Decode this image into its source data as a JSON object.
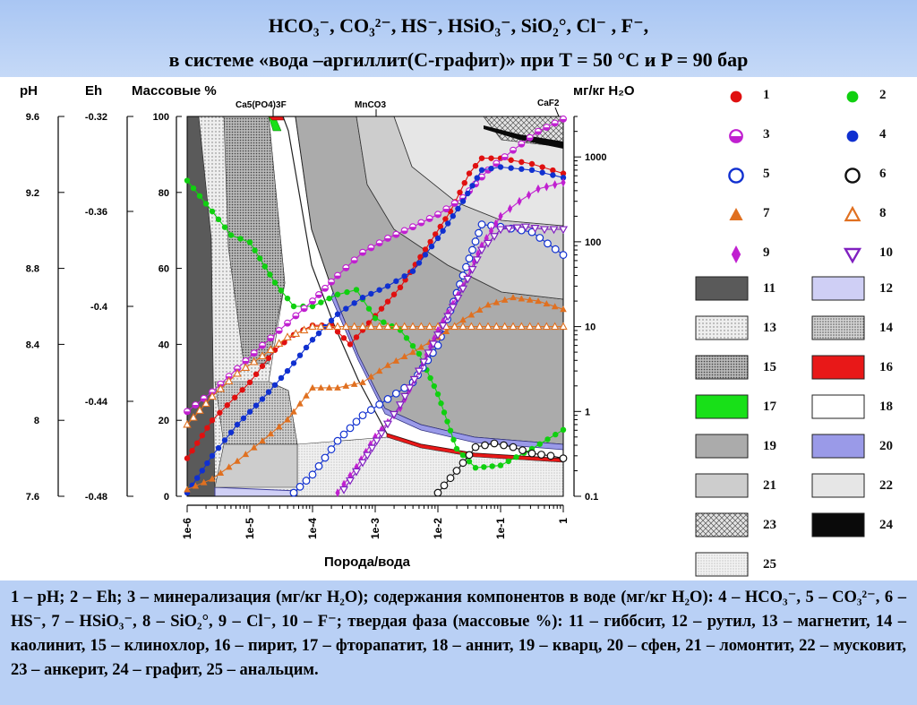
{
  "header": {
    "title_line1": "HCO₃⁻, CO₃²⁻, HS⁻, HSiO₃⁻, SiO₂°, Cl⁻ , F⁻,",
    "title_line2": "в системе «вода –аргиллит(C-графит)» при T = 50 °C  и  P = 90 бар"
  },
  "chart_data": {
    "type": "line",
    "title": "",
    "xlabel": "Порода/вода",
    "x_scale": "log",
    "x_ticks": [
      "1e-6",
      "1e-5",
      "1e-4",
      "1e-3",
      "1e-2",
      "1e-1",
      "1"
    ],
    "x_range": [
      1e-06,
      1
    ],
    "axes": {
      "ph": {
        "label": "pH",
        "ticks": [
          "9.6",
          "9.2",
          "8.8",
          "8.4",
          "8",
          "7.6"
        ],
        "range": [
          7.6,
          9.6
        ]
      },
      "eh": {
        "label": "Eh",
        "ticks": [
          "-0.32",
          "-0.36",
          "-0.4",
          "-0.44",
          "-0.48"
        ],
        "range": [
          -0.48,
          -0.32
        ]
      },
      "mass": {
        "label": "Массовые %",
        "ticks": [
          "100",
          "80",
          "60",
          "40",
          "20",
          "0"
        ],
        "range": [
          0,
          100
        ]
      },
      "conc": {
        "label": "мг/кг H₂O",
        "ticks": [
          "1000",
          "100",
          "10",
          "1",
          "0.1"
        ],
        "scale": "log",
        "range": [
          0.1,
          3000
        ]
      }
    },
    "mineral_annotations": [
      "Ca5(PO4)3F",
      "MnCO3",
      "CaF2"
    ],
    "series": [
      {
        "id": 1,
        "name": "pH",
        "axis": "ph",
        "color": "#e01010",
        "marker": "filled-circle",
        "x": [
          -6,
          -5.6,
          -5,
          -4.6,
          -4.3,
          -4,
          -3.7,
          -3.4,
          -3,
          -2.6,
          -2.2,
          -1.8,
          -1.5,
          -1.3,
          -1,
          -0.5,
          0
        ],
        "y": [
          7.8,
          8.0,
          8.2,
          8.37,
          8.45,
          8.5,
          8.5,
          8.4,
          8.55,
          8.7,
          8.9,
          9.1,
          9.3,
          9.38,
          9.38,
          9.35,
          9.3
        ]
      },
      {
        "id": 2,
        "name": "Eh",
        "axis": "eh",
        "color": "#10d010",
        "marker": "filled-circle",
        "x": [
          -6,
          -5.6,
          -5.3,
          -5,
          -4.6,
          -4.3,
          -4,
          -3.6,
          -3.3,
          -3,
          -2.6,
          -2.3,
          -2,
          -1.7,
          -1.4,
          -1,
          -0.5,
          0
        ],
        "y": [
          -0.347,
          -0.36,
          -0.37,
          -0.373,
          -0.39,
          -0.4,
          -0.4,
          -0.395,
          -0.393,
          -0.405,
          -0.41,
          -0.42,
          -0.437,
          -0.46,
          -0.468,
          -0.467,
          -0.46,
          -0.452
        ]
      },
      {
        "id": 3,
        "name": "минерализация",
        "axis": "conc",
        "color": "#c020d0",
        "marker": "half-circle",
        "x": [
          -6,
          -5.6,
          -5.2,
          -4.8,
          -4.4,
          -4,
          -3.6,
          -3.2,
          -2.8,
          -2.4,
          -2,
          -1.6,
          -1.2,
          -0.8,
          -0.4,
          0
        ],
        "y": [
          1.0,
          1.7,
          3.2,
          6,
          11,
          20,
          40,
          75,
          110,
          150,
          210,
          330,
          700,
          1200,
          2000,
          2800
        ]
      },
      {
        "id": 4,
        "name": "HCO3-",
        "axis": "conc",
        "color": "#1030d0",
        "marker": "filled-circle",
        "x": [
          -6,
          -5.6,
          -5.2,
          -4.8,
          -4.4,
          -4,
          -3.6,
          -3.2,
          -2.8,
          -2.4,
          -2,
          -1.6,
          -1.3,
          -1,
          -0.5,
          0
        ],
        "y": [
          0.11,
          0.3,
          0.7,
          1.4,
          3,
          7,
          14,
          22,
          30,
          45,
          110,
          300,
          700,
          760,
          700,
          570
        ]
      },
      {
        "id": 5,
        "name": "CO3 2-",
        "axis": "conc",
        "color": "#1030d0",
        "marker": "open-circle",
        "x": [
          -4.3,
          -4,
          -3.6,
          -3.2,
          -2.8,
          -2.4,
          -2,
          -1.6,
          -1.3,
          -1,
          -0.5,
          0
        ],
        "y": [
          0.11,
          0.18,
          0.45,
          0.9,
          1.4,
          2.2,
          6,
          40,
          160,
          150,
          130,
          70
        ]
      },
      {
        "id": 6,
        "name": "HS-",
        "axis": "conc",
        "color": "#101010",
        "marker": "open-circle",
        "x": [
          -2,
          -1.7,
          -1.4,
          -1.1,
          -0.8,
          -0.5,
          -0.2,
          0
        ],
        "y": [
          0.11,
          0.2,
          0.38,
          0.42,
          0.38,
          0.32,
          0.3,
          0.28
        ]
      },
      {
        "id": 7,
        "name": "HSiO3-",
        "axis": "conc",
        "color": "#e07020",
        "marker": "filled-triangle",
        "x": [
          -6,
          -5.6,
          -5.2,
          -4.8,
          -4.4,
          -4,
          -3.6,
          -3.2,
          -2.8,
          -2.4,
          -2,
          -1.6,
          -1.2,
          -0.8,
          -0.4,
          0
        ],
        "y": [
          0.12,
          0.16,
          0.26,
          0.45,
          0.8,
          1.9,
          1.9,
          2.2,
          3.5,
          5,
          7.5,
          12,
          18,
          22,
          20,
          16
        ]
      },
      {
        "id": 8,
        "name": "SiO2°",
        "axis": "conc",
        "color": "#e07020",
        "marker": "open-triangle",
        "x": [
          -6,
          -5.6,
          -5.2,
          -4.8,
          -4.4,
          -4,
          -3.6,
          -3.2,
          -2.8,
          -2.4,
          -2,
          -1.6,
          -1.2,
          -0.8,
          -0.4,
          0
        ],
        "y": [
          0.7,
          1.5,
          2.8,
          4.5,
          7.5,
          10,
          10,
          10,
          10,
          10,
          10,
          10,
          10,
          10,
          10,
          10
        ]
      },
      {
        "id": 9,
        "name": "Cl-",
        "axis": "conc",
        "color": "#c020d0",
        "marker": "filled-diamond",
        "x": [
          -3.6,
          -3.3,
          -3,
          -2.6,
          -2.3,
          -2,
          -1.6,
          -1.3,
          -1,
          -0.7,
          -0.4,
          0
        ],
        "y": [
          0.11,
          0.22,
          0.5,
          1.1,
          3,
          9,
          30,
          90,
          200,
          300,
          420,
          500
        ]
      },
      {
        "id": 10,
        "name": "F-",
        "axis": "conc",
        "color": "#8020c0",
        "marker": "open-triangle-down",
        "x": [
          -3.5,
          -3.2,
          -2.9,
          -2.6,
          -2.3,
          -2,
          -1.6,
          -1.3,
          -1,
          -0.6,
          -0.3,
          0
        ],
        "y": [
          0.12,
          0.25,
          0.55,
          1.2,
          3,
          8,
          28,
          80,
          140,
          150,
          140,
          140
        ]
      }
    ],
    "solid_phases": [
      {
        "id": 11,
        "name": "гиббсит",
        "fill": "#5a5a5a"
      },
      {
        "id": 12,
        "name": "рутил",
        "fill": "#cfcff5"
      },
      {
        "id": 13,
        "name": "магнетит",
        "fill": "#e9e9e9",
        "pattern": "dots"
      },
      {
        "id": 14,
        "name": "каолинит",
        "fill": "#d6d6d6",
        "pattern": "dense-dots"
      },
      {
        "id": 15,
        "name": "клинохлор",
        "fill": "#bdbdbd",
        "pattern": "dots-dark"
      },
      {
        "id": 16,
        "name": "пирит",
        "fill": "#e81818"
      },
      {
        "id": 17,
        "name": "фторапатит",
        "fill": "#18e018"
      },
      {
        "id": 18,
        "name": "аннит",
        "fill": "#ffffff"
      },
      {
        "id": 19,
        "name": "кварц",
        "fill": "#ababab"
      },
      {
        "id": 20,
        "name": "сфен",
        "fill": "#9a9ae8"
      },
      {
        "id": 21,
        "name": "ломонтит",
        "fill": "#cdcdcd"
      },
      {
        "id": 22,
        "name": "мусковит",
        "fill": "#e6e6e6"
      },
      {
        "id": 23,
        "name": "анкерит",
        "fill": "#e0e0e0",
        "pattern": "crosshatch"
      },
      {
        "id": 24,
        "name": "графит",
        "fill": "#0a0a0a"
      },
      {
        "id": 25,
        "name": "анальцим",
        "fill": "#ededed",
        "pattern": "fine-dots"
      }
    ],
    "legend_placement": "right",
    "grid": false
  },
  "legend": {
    "numbers": [
      "1",
      "2",
      "3",
      "4",
      "5",
      "6",
      "7",
      "8",
      "9",
      "10",
      "11",
      "12",
      "13",
      "14",
      "15",
      "16",
      "17",
      "18",
      "19",
      "20",
      "21",
      "22",
      "23",
      "24",
      "25"
    ]
  },
  "caption": {
    "text": "1 – pH; 2 – Eh; 3 – минерализация (мг/кг H₂O); содержания компонентов в воде (мг/кг H₂O): 4 – HCO₃⁻, 5 – CO₃²⁻, 6 – HS⁻, 7 – HSiO₃⁻, 8 – SiO₂°, 9 – Cl⁻, 10 – F⁻; твердая фаза (массовые %): 11 – гиббсит,   12 – рутил,   13 – магнетит,   14 – каолинит,  15 – клинохлор, 16 – пирит,    17 – фторапатит,   18 – аннит,  19 – кварц,   20 –  сфен, 21 – ломонтит, 22 – мусковит,  23 –  анкерит, 24 – графит,  25 – анальцим."
  }
}
